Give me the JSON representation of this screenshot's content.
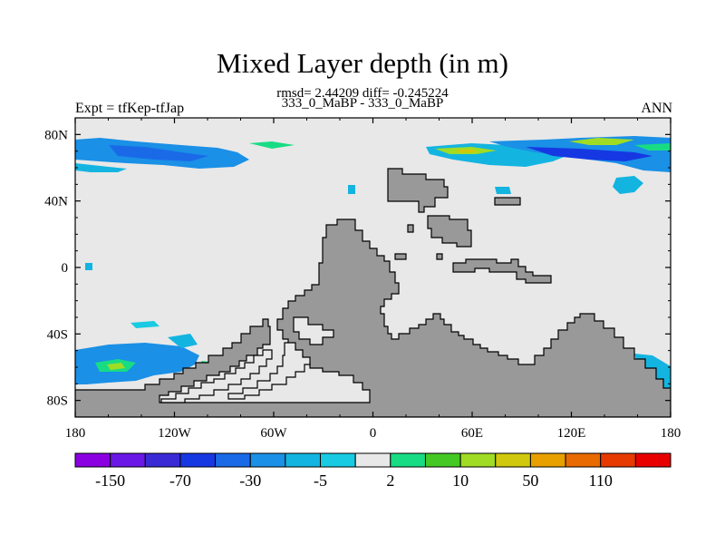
{
  "title": "Mixed Layer depth (in m)",
  "stats": "rmsd= 2.44209 diff= -0.245224",
  "cases": "333_0_MaBP - 333_0_MaBP",
  "left_label": "Expt = tfKep-tfJap",
  "right_label": "ANN",
  "colors": {
    "ocean": "#e8e8e8",
    "land": "#999999",
    "coast": "#000000"
  },
  "axes": {
    "x_ticks": [
      "180",
      "120W",
      "60W",
      "0",
      "60E",
      "120E",
      "180"
    ],
    "y_ticks": [
      "80N",
      "40N",
      "0",
      "40S",
      "80S"
    ]
  },
  "colorbar": {
    "colors": [
      "#8a00e0",
      "#6a18e6",
      "#3a2ad6",
      "#1638e2",
      "#1a6ae8",
      "#1a90e6",
      "#14b4e0",
      "#18cbe2",
      "#e8e8e8",
      "#18dc84",
      "#44c824",
      "#a0dc24",
      "#d0c80c",
      "#e8a000",
      "#e86a00",
      "#e63a00",
      "#e80000"
    ],
    "labels": [
      "-150",
      "-70",
      "-30",
      "-5",
      "2",
      "10",
      "50",
      "110"
    ]
  },
  "map": {
    "type": "map",
    "lon_range": [
      -180,
      180
    ],
    "lat_range": [
      -90,
      90
    ],
    "variable": "Mixed Layer depth difference",
    "units": "m",
    "patches": [
      {
        "region": "northern-band-west",
        "level": -30
      },
      {
        "region": "northern-band-east",
        "level": -30
      },
      {
        "region": "north-east-core",
        "level": -70
      },
      {
        "region": "north-pacific-bright",
        "level": 10
      },
      {
        "region": "southern-ocean-west",
        "level": -30
      },
      {
        "region": "southern-ocean-west-core",
        "level": 10
      }
    ]
  }
}
